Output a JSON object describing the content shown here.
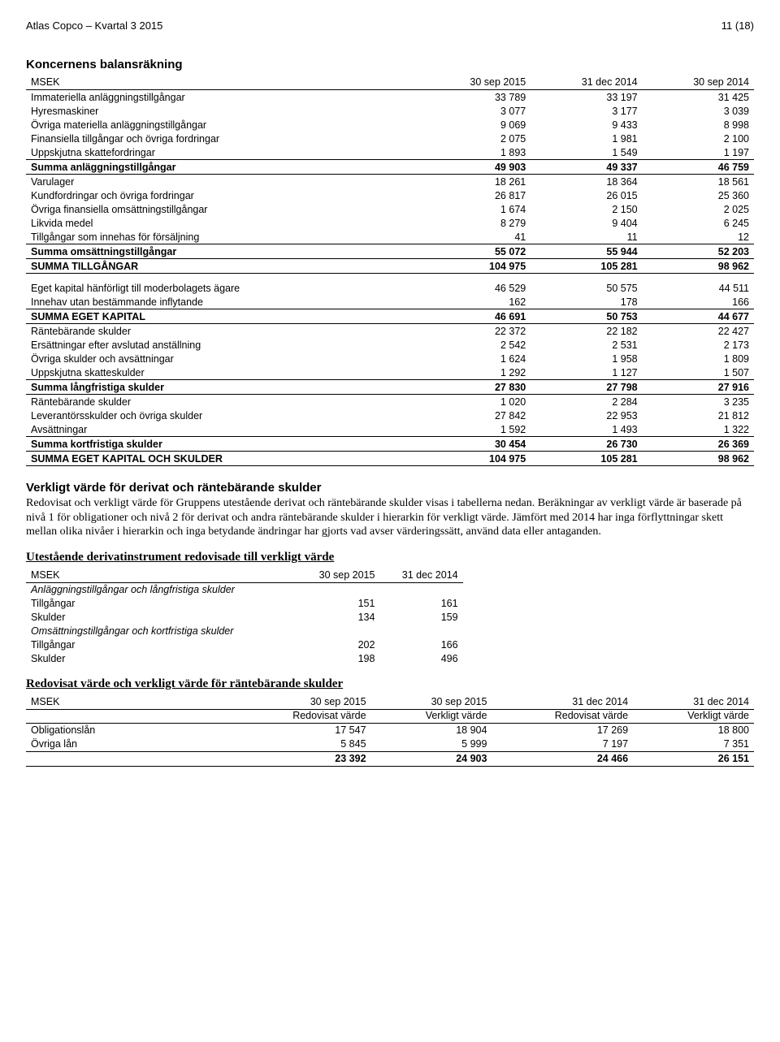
{
  "header": {
    "left": "Atlas Copco – Kvartal 3 2015",
    "right": "11 (18)"
  },
  "balance": {
    "title": "Koncernens balansräkning",
    "cols": [
      "MSEK",
      "30 sep 2015",
      "31 dec 2014",
      "30 sep 2014"
    ],
    "rows": [
      {
        "lbl": "Immateriella anläggningstillgångar",
        "v": [
          "33 789",
          "33 197",
          "31 425"
        ]
      },
      {
        "lbl": "Hyresmaskiner",
        "v": [
          "3 077",
          "3 177",
          "3 039"
        ]
      },
      {
        "lbl": "Övriga materiella anläggningstillgångar",
        "v": [
          "9 069",
          "9 433",
          "8 998"
        ]
      },
      {
        "lbl": "Finansiella tillgångar och övriga fordringar",
        "v": [
          "2 075",
          "1 981",
          "2 100"
        ]
      },
      {
        "lbl": "Uppskjutna skattefordringar",
        "v": [
          "1 893",
          "1 549",
          "1 197"
        ]
      }
    ],
    "sum1": {
      "lbl": "Summa anläggningstillgångar",
      "v": [
        "49 903",
        "49 337",
        "46 759"
      ]
    },
    "rows2": [
      {
        "lbl": "Varulager",
        "v": [
          "18 261",
          "18 364",
          "18 561"
        ]
      },
      {
        "lbl": "Kundfordringar och övriga fordringar",
        "v": [
          "26 817",
          "26 015",
          "25 360"
        ]
      },
      {
        "lbl": "Övriga finansiella omsättningstillgångar",
        "v": [
          "1 674",
          "2 150",
          "2 025"
        ]
      },
      {
        "lbl": "Likvida medel",
        "v": [
          "8 279",
          "9 404",
          "6 245"
        ]
      },
      {
        "lbl": "Tillgångar som innehas för försäljning",
        "v": [
          "41",
          "11",
          "12"
        ]
      }
    ],
    "sum2": {
      "lbl": "Summa omsättningstillgångar",
      "v": [
        "55 072",
        "55 944",
        "52 203"
      ]
    },
    "total1": {
      "lbl": "SUMMA TILLGÅNGAR",
      "v": [
        "104 975",
        "105 281",
        "98 962"
      ]
    },
    "rows3": [
      {
        "lbl": "Eget kapital hänförligt till moderbolagets ägare",
        "v": [
          "46 529",
          "50 575",
          "44 511"
        ]
      },
      {
        "lbl": "Innehav utan bestämmande inflytande",
        "v": [
          "162",
          "178",
          "166"
        ]
      }
    ],
    "sum3": {
      "lbl": "SUMMA EGET KAPITAL",
      "v": [
        "46 691",
        "50 753",
        "44 677"
      ]
    },
    "rows4": [
      {
        "lbl": "Räntebärande skulder",
        "v": [
          "22 372",
          "22 182",
          "22 427"
        ]
      },
      {
        "lbl": "Ersättningar efter avslutad anställning",
        "v": [
          "2 542",
          "2 531",
          "2 173"
        ]
      },
      {
        "lbl": "Övriga skulder och avsättningar",
        "v": [
          "1 624",
          "1 958",
          "1 809"
        ]
      },
      {
        "lbl": "Uppskjutna skatteskulder",
        "v": [
          "1 292",
          "1 127",
          "1 507"
        ]
      }
    ],
    "sum4": {
      "lbl": "Summa långfristiga skulder",
      "v": [
        "27 830",
        "27 798",
        "27 916"
      ]
    },
    "rows5": [
      {
        "lbl": "Räntebärande skulder",
        "v": [
          "1 020",
          "2 284",
          "3 235"
        ]
      },
      {
        "lbl": "Leverantörsskulder och övriga skulder",
        "v": [
          "27 842",
          "22 953",
          "21 812"
        ]
      },
      {
        "lbl": "Avsättningar",
        "v": [
          "1 592",
          "1 493",
          "1 322"
        ]
      }
    ],
    "sum5": {
      "lbl": "Summa kortfristiga skulder",
      "v": [
        "30 454",
        "26 730",
        "26 369"
      ]
    },
    "total2": {
      "lbl": "SUMMA EGET KAPITAL OCH SKULDER",
      "v": [
        "104 975",
        "105 281",
        "98 962"
      ]
    }
  },
  "fv": {
    "title": "Verkligt värde för derivat och räntebärande skulder",
    "body": "Redovisat och verkligt värde för Gruppens utestående derivat och räntebärande skulder visas i tabellerna nedan. Beräkningar av verkligt värde är baserade på nivå 1 för obligationer och nivå 2 för derivat och andra räntebärande skulder i hierarkin för verkligt värde. Jämfört med 2014 har inga förflyttningar skett mellan olika nivåer i hierarkin och inga betydande ändringar har gjorts vad avser värderingssätt, använd data eller antaganden."
  },
  "deriv": {
    "title": "Utestående derivatinstrument redovisade till verkligt värde",
    "cols": [
      "MSEK",
      "30 sep 2015",
      "31 dec 2014"
    ],
    "g1": "Anläggningstillgångar och långfristiga skulder",
    "g1rows": [
      {
        "lbl": "Tillgångar",
        "v": [
          "151",
          "161"
        ]
      },
      {
        "lbl": "Skulder",
        "v": [
          "134",
          "159"
        ]
      }
    ],
    "g2": "Omsättningstillgångar och kortfristiga skulder",
    "g2rows": [
      {
        "lbl": "Tillgångar",
        "v": [
          "202",
          "166"
        ]
      },
      {
        "lbl": "Skulder",
        "v": [
          "198",
          "496"
        ]
      }
    ]
  },
  "loans": {
    "title": "Redovisat värde och verkligt värde för räntebärande skulder",
    "cols": [
      "MSEK",
      "30 sep 2015",
      "30 sep 2015",
      "31 dec 2014",
      "31 dec 2014"
    ],
    "sub": [
      "",
      "Redovisat värde",
      "Verkligt värde",
      "Redovisat värde",
      "Verkligt värde"
    ],
    "rows": [
      {
        "lbl": "Obligationslån",
        "v": [
          "17 547",
          "18 904",
          "17 269",
          "18 800"
        ]
      },
      {
        "lbl": "Övriga lån",
        "v": [
          "5 845",
          "5 999",
          "7 197",
          "7 351"
        ]
      }
    ],
    "total": {
      "lbl": "",
      "v": [
        "23 392",
        "24 903",
        "24 466",
        "26 151"
      ]
    }
  }
}
